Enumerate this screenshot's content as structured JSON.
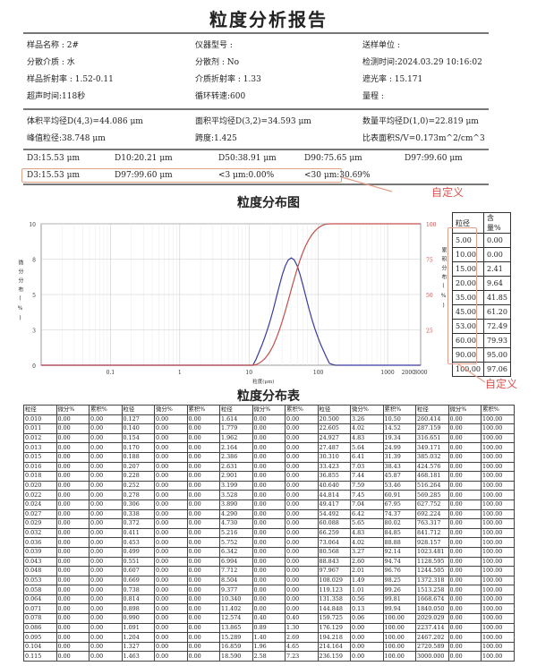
{
  "title": "粒度分析报告",
  "info": [
    [
      "样品名称 : 2#",
      "仪器型号 :",
      "送样单位 :"
    ],
    [
      "分散介质 : 水",
      "分散剂 : No",
      "检测时间:2024.03.29 10:16:02"
    ],
    [
      "样品折射率 : 1.52-0.11",
      "介质折射率 : 1.33",
      "遮光率 : 15.171"
    ],
    [
      "超声时间:118秒",
      "循环转速:600",
      "量程 :"
    ]
  ],
  "stats": [
    [
      "体积平均径D(4,3)=44.086 μm",
      "面积平均径D(3,2)=34.593 μm",
      "数量平均径D(1,0)=22.819 μm"
    ],
    [
      "峰值粒径:38.748 μm",
      "跨度:1.425",
      "比表面积S/V=0.173m^2/cm^3"
    ]
  ],
  "d_values": [
    "D3:15.53 μm",
    "D10:20.21 μm",
    "D50:38.91 μm",
    "D90:75.65 μm",
    "D97:99.60 μm"
  ],
  "custom_values": [
    "D3:15.53 μm",
    "D97:99.60 μm",
    "<3 μm:0.00%",
    "<30 μm:30.69%"
  ],
  "annotation_label": "自定义",
  "annotation_color": "#d9534f",
  "chart_title": "粒度分布图",
  "chart_data": {
    "type": "line",
    "xscale": "log",
    "xlim": [
      0.01,
      3000
    ],
    "xticks": [
      {
        "v": 0.1,
        "l": "0.1"
      },
      {
        "v": 1,
        "l": "1"
      },
      {
        "v": 10,
        "l": "10"
      },
      {
        "v": 100,
        "l": "100"
      },
      {
        "v": 1000,
        "l": "1000"
      },
      {
        "v": 2000,
        "l": "2000"
      },
      {
        "v": 3000,
        "l": "3000"
      }
    ],
    "xlabel": "粒度(μm)",
    "ylabel_left": "微分分布(%)",
    "ylim_left": [
      0,
      10
    ],
    "yticks_left": [
      {
        "v": 0,
        "l": "0"
      },
      {
        "v": 2.5,
        "l": "3"
      },
      {
        "v": 5,
        "l": "5"
      },
      {
        "v": 7.5,
        "l": "8"
      },
      {
        "v": 10,
        "l": "10"
      }
    ],
    "ylabel_right": "累积分布(%)",
    "ylim_right": [
      0,
      100
    ],
    "yticks_right": [
      {
        "v": 25,
        "l": "25"
      },
      {
        "v": 50,
        "l": "50"
      },
      {
        "v": 75,
        "l": "75"
      },
      {
        "v": 100,
        "l": "100"
      }
    ],
    "grid": true,
    "x": [
      10.34,
      11.402,
      12.574,
      13.865,
      15.289,
      16.859,
      18.59,
      20.5,
      22.605,
      24.927,
      27.487,
      30.31,
      33.423,
      36.855,
      40.64,
      44.814,
      49.417,
      54.492,
      60.088,
      66.259,
      73.064,
      80.568,
      88.843,
      97.967,
      108.029,
      119.123,
      131.358,
      144.848,
      159.725,
      176.129
    ],
    "series": [
      {
        "axis": "left",
        "color": "#3b3b9a",
        "values": [
          0,
          0,
          0.4,
          0.89,
          1.4,
          1.96,
          2.58,
          3.26,
          4.02,
          4.83,
          5.64,
          6.41,
          7.03,
          7.44,
          7.59,
          7.45,
          7.04,
          6.42,
          5.65,
          4.83,
          4.02,
          3.27,
          2.6,
          2.01,
          1.49,
          1.01,
          0.56,
          0.13,
          0.06,
          0
        ]
      },
      {
        "axis": "right",
        "color": "#c0504d",
        "values": [
          0,
          0,
          0.4,
          1.3,
          2.69,
          4.65,
          7.23,
          10.5,
          14.52,
          19.34,
          24.99,
          31.39,
          38.43,
          45.87,
          53.46,
          60.91,
          67.95,
          74.37,
          80.02,
          84.85,
          88.88,
          92.14,
          94.74,
          96.76,
          98.25,
          99.26,
          99.81,
          99.94,
          100,
          100
        ]
      }
    ]
  },
  "side_table": {
    "headers": [
      "粒径",
      "含量%"
    ],
    "rows": [
      [
        "5.00",
        "0.00"
      ],
      [
        "10.00",
        "0.00"
      ],
      [
        "15.00",
        "2.41"
      ],
      [
        "20.00",
        "9.64"
      ],
      [
        "35.00",
        "41.85"
      ],
      [
        "45.00",
        "61.20"
      ],
      [
        "53.00",
        "72.49"
      ],
      [
        "60.00",
        "79.93"
      ],
      [
        "90.00",
        "95.00"
      ],
      [
        "100.00",
        "97.06"
      ]
    ]
  },
  "table_title": "粒度分布表",
  "table": {
    "headers": [
      "粒径",
      "微分%",
      "累积%",
      "粒径",
      "微分%",
      "累积%",
      "粒径",
      "微分%",
      "累积%",
      "粒径",
      "微分%",
      "累积%",
      "粒径",
      "微分%",
      "累积%"
    ],
    "rows": [
      [
        "0.010",
        "0.00",
        "0.00",
        "0.127",
        "0.00",
        "0.00",
        "1.614",
        "0.00",
        "0.00",
        "20.500",
        "3.26",
        "10.50",
        "260.414",
        "0.00",
        "100.00"
      ],
      [
        "0.011",
        "0.00",
        "0.00",
        "0.140",
        "0.00",
        "0.00",
        "1.779",
        "0.00",
        "0.00",
        "22.605",
        "4.02",
        "14.52",
        "287.159",
        "0.00",
        "100.00"
      ],
      [
        "0.012",
        "0.00",
        "0.00",
        "0.154",
        "0.00",
        "0.00",
        "1.962",
        "0.00",
        "0.00",
        "24.927",
        "4.83",
        "19.34",
        "316.651",
        "0.00",
        "100.00"
      ],
      [
        "0.013",
        "0.00",
        "0.00",
        "0.170",
        "0.00",
        "0.00",
        "2.164",
        "0.00",
        "0.00",
        "27.487",
        "5.64",
        "24.99",
        "349.171",
        "0.00",
        "100.00"
      ],
      [
        "0.015",
        "0.00",
        "0.00",
        "0.188",
        "0.00",
        "0.00",
        "2.386",
        "0.00",
        "0.00",
        "30.310",
        "6.41",
        "31.39",
        "385.032",
        "0.00",
        "100.00"
      ],
      [
        "0.016",
        "0.00",
        "0.00",
        "0.207",
        "0.00",
        "0.00",
        "2.631",
        "0.00",
        "0.00",
        "33.423",
        "7.03",
        "38.43",
        "424.576",
        "0.00",
        "100.00"
      ],
      [
        "0.018",
        "0.00",
        "0.00",
        "0.228",
        "0.00",
        "0.00",
        "2.901",
        "0.00",
        "0.00",
        "36.855",
        "7.44",
        "45.87",
        "468.181",
        "0.00",
        "100.00"
      ],
      [
        "0.020",
        "0.00",
        "0.00",
        "0.252",
        "0.00",
        "0.00",
        "3.199",
        "0.00",
        "0.00",
        "40.640",
        "7.59",
        "53.46",
        "516.264",
        "0.00",
        "100.00"
      ],
      [
        "0.022",
        "0.00",
        "0.00",
        "0.278",
        "0.00",
        "0.00",
        "3.528",
        "0.00",
        "0.00",
        "44.814",
        "7.45",
        "60.91",
        "569.285",
        "0.00",
        "100.00"
      ],
      [
        "0.024",
        "0.00",
        "0.00",
        "0.306",
        "0.00",
        "0.00",
        "3.890",
        "0.00",
        "0.00",
        "49.417",
        "7.04",
        "67.95",
        "627.752",
        "0.00",
        "100.00"
      ],
      [
        "0.027",
        "0.00",
        "0.00",
        "0.338",
        "0.00",
        "0.00",
        "4.290",
        "0.00",
        "0.00",
        "54.492",
        "6.42",
        "74.37",
        "692.224",
        "0.00",
        "100.00"
      ],
      [
        "0.029",
        "0.00",
        "0.00",
        "0.372",
        "0.00",
        "0.00",
        "4.730",
        "0.00",
        "0.00",
        "60.088",
        "5.65",
        "80.02",
        "763.317",
        "0.00",
        "100.00"
      ],
      [
        "0.032",
        "0.00",
        "0.00",
        "0.411",
        "0.00",
        "0.00",
        "5.216",
        "0.00",
        "0.00",
        "66.259",
        "4.83",
        "84.85",
        "841.712",
        "0.00",
        "100.00"
      ],
      [
        "0.036",
        "0.00",
        "0.00",
        "0.453",
        "0.00",
        "0.00",
        "5.752",
        "0.00",
        "0.00",
        "73.064",
        "4.02",
        "88.88",
        "928.157",
        "0.00",
        "100.00"
      ],
      [
        "0.039",
        "0.00",
        "0.00",
        "0.499",
        "0.00",
        "0.00",
        "6.342",
        "0.00",
        "0.00",
        "80.568",
        "3.27",
        "92.14",
        "1023.481",
        "0.00",
        "100.00"
      ],
      [
        "0.043",
        "0.00",
        "0.00",
        "0.551",
        "0.00",
        "0.00",
        "6.994",
        "0.00",
        "0.00",
        "88.843",
        "2.60",
        "94.74",
        "1128.595",
        "0.00",
        "100.00"
      ],
      [
        "0.048",
        "0.00",
        "0.00",
        "0.607",
        "0.00",
        "0.00",
        "7.712",
        "0.00",
        "0.00",
        "97.967",
        "2.01",
        "96.76",
        "1244.505",
        "0.00",
        "100.00"
      ],
      [
        "0.053",
        "0.00",
        "0.00",
        "0.669",
        "0.00",
        "0.00",
        "8.504",
        "0.00",
        "0.00",
        "108.029",
        "1.49",
        "98.25",
        "1372.318",
        "0.00",
        "100.00"
      ],
      [
        "0.058",
        "0.00",
        "0.00",
        "0.738",
        "0.00",
        "0.00",
        "9.377",
        "0.00",
        "0.00",
        "119.123",
        "1.01",
        "99.26",
        "1513.258",
        "0.00",
        "100.00"
      ],
      [
        "0.064",
        "0.00",
        "0.00",
        "0.814",
        "0.00",
        "0.00",
        "10.340",
        "0.00",
        "0.00",
        "131.358",
        "0.56",
        "99.81",
        "1668.674",
        "0.00",
        "100.00"
      ],
      [
        "0.071",
        "0.00",
        "0.00",
        "0.898",
        "0.00",
        "0.00",
        "11.402",
        "0.00",
        "0.00",
        "144.848",
        "0.13",
        "99.94",
        "1840.050",
        "0.00",
        "100.00"
      ],
      [
        "0.078",
        "0.00",
        "0.00",
        "0.990",
        "0.00",
        "0.00",
        "12.574",
        "0.40",
        "0.40",
        "159.725",
        "0.06",
        "100.00",
        "2029.029",
        "0.00",
        "100.00"
      ],
      [
        "0.086",
        "0.00",
        "0.00",
        "1.091",
        "0.00",
        "0.00",
        "13.865",
        "0.89",
        "1.30",
        "176.129",
        "0.00",
        "100.00",
        "2237.414",
        "0.00",
        "100.00"
      ],
      [
        "0.095",
        "0.00",
        "0.00",
        "1.204",
        "0.00",
        "0.00",
        "15.289",
        "1.40",
        "2.69",
        "194.218",
        "0.00",
        "100.00",
        "2467.202",
        "0.00",
        "100.00"
      ],
      [
        "0.104",
        "0.00",
        "0.00",
        "1.327",
        "0.00",
        "0.00",
        "16.859",
        "1.96",
        "4.65",
        "214.164",
        "0.00",
        "100.00",
        "2720.589",
        "0.00",
        "100.00"
      ],
      [
        "0.115",
        "0.00",
        "0.00",
        "1.463",
        "0.00",
        "0.00",
        "18.590",
        "2.58",
        "7.23",
        "236.159",
        "0.00",
        "100.00",
        "3000.000",
        "0.00",
        "100.00"
      ]
    ]
  }
}
